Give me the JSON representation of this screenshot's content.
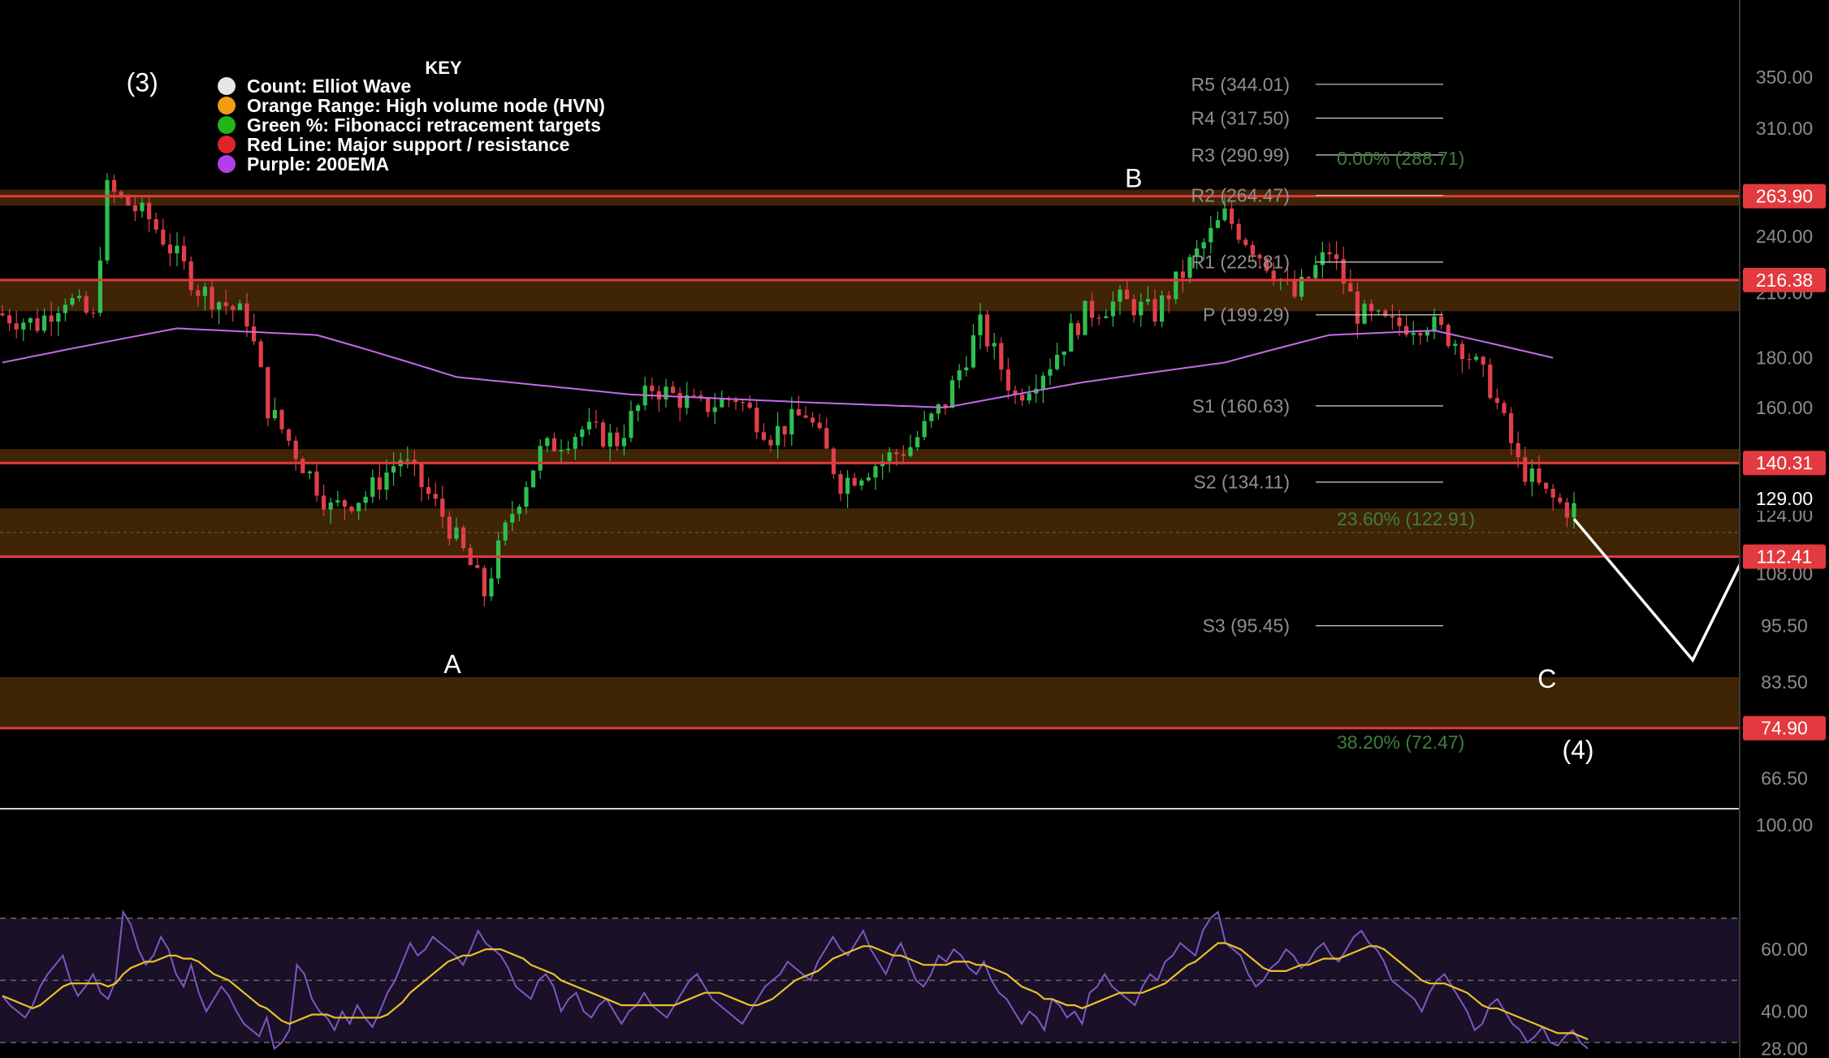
{
  "chart_data": [
    {
      "type": "candlestick",
      "title": "",
      "xlabel": "",
      "ylabel": "",
      "y_scale": "log",
      "ylim": [
        62,
        420
      ],
      "y_ticks": [
        "66.50",
        "83.50",
        "95.50",
        "108.00",
        "124.00",
        "160.00",
        "180.00",
        "210.00",
        "240.00",
        "310.00",
        "350.00"
      ],
      "price_labels": [
        {
          "value": 263.9,
          "text": "263.90",
          "style": "red"
        },
        {
          "value": 216.38,
          "text": "216.38",
          "style": "red"
        },
        {
          "value": 140.31,
          "text": "140.31",
          "style": "red"
        },
        {
          "value": 129.0,
          "text": "129.00",
          "style": "current"
        },
        {
          "value": 112.41,
          "text": "112.41",
          "style": "red"
        },
        {
          "value": 74.9,
          "text": "74.90",
          "style": "red"
        }
      ],
      "legend": {
        "title": "KEY",
        "position": "top-left",
        "items": [
          {
            "label": "Count: Elliot Wave",
            "color": "#e6e6e6"
          },
          {
            "label": "Orange Range: High volume node (HVN)",
            "color": "#f29b13"
          },
          {
            "label": "Green %: Fibonacci retracement targets",
            "color": "#22b51b"
          },
          {
            "label": "Red Line: Major support / resistance",
            "color": "#e0242c"
          },
          {
            "label": "Purple: 200EMA",
            "color": "#b43ee8"
          }
        ]
      },
      "support_resistance": [
        263.9,
        216.38,
        140.31,
        112.41,
        74.9
      ],
      "hvn_zones": [
        {
          "low": 258,
          "high": 268
        },
        {
          "low": 201,
          "high": 216.38
        },
        {
          "low": 140.31,
          "high": 145
        },
        {
          "low": 112.41,
          "high": 126
        },
        {
          "low": 74.9,
          "high": 84.5
        }
      ],
      "pivot_levels": [
        {
          "label": "R5 (344.01)",
          "value": 344.01
        },
        {
          "label": "R4 (317.50)",
          "value": 317.5
        },
        {
          "label": "R3 (290.99)",
          "value": 290.99
        },
        {
          "label": "R2 (264.47)",
          "value": 264.47
        },
        {
          "label": "R1 (225.81)",
          "value": 225.81
        },
        {
          "label": "P (199.29)",
          "value": 199.29
        },
        {
          "label": "S1 (160.63)",
          "value": 160.63
        },
        {
          "label": "S2 (134.11)",
          "value": 134.11
        },
        {
          "label": "S3 (95.45)",
          "value": 95.45
        }
      ],
      "fib_targets": [
        {
          "label": "0.00% (288.71)",
          "value": 288.71
        },
        {
          "label": "23.60% (122.91)",
          "value": 122.91
        },
        {
          "label": "38.20% (72.47)",
          "value": 72.47
        }
      ],
      "wave_labels": [
        {
          "label": "(3)",
          "bar": 2,
          "value": 345
        },
        {
          "label": "A",
          "bar": 70,
          "value": 87
        },
        {
          "label": "B",
          "bar": 178,
          "value": 275
        },
        {
          "label": "C",
          "bar": 243,
          "value": 84
        },
        {
          "label": "(4)",
          "bar": 245,
          "value": 71
        }
      ],
      "projection": [
        {
          "bar": 225,
          "value": 122.9
        },
        {
          "bar": 242,
          "value": 88
        },
        {
          "bar": 265,
          "value": 190
        }
      ],
      "ohlc_anchors": [
        [
          0,
          200
        ],
        [
          6,
          195
        ],
        [
          10,
          208
        ],
        [
          14,
          197
        ],
        [
          16,
          268
        ],
        [
          22,
          250
        ],
        [
          29,
          212
        ],
        [
          36,
          198
        ],
        [
          39,
          160
        ],
        [
          44,
          140
        ],
        [
          48,
          126
        ],
        [
          53,
          130
        ],
        [
          58,
          142
        ],
        [
          64,
          124
        ],
        [
          70,
          103
        ],
        [
          74,
          125
        ],
        [
          78,
          144
        ],
        [
          84,
          152
        ],
        [
          89,
          148
        ],
        [
          94,
          168
        ],
        [
          101,
          160
        ],
        [
          106,
          164
        ],
        [
          111,
          150
        ],
        [
          116,
          158
        ],
        [
          121,
          134
        ],
        [
          126,
          140
        ],
        [
          131,
          146
        ],
        [
          136,
          162
        ],
        [
          141,
          194
        ],
        [
          146,
          164
        ],
        [
          151,
          178
        ],
        [
          156,
          200
        ],
        [
          161,
          206
        ],
        [
          166,
          200
        ],
        [
          171,
          225
        ],
        [
          176,
          252
        ],
        [
          181,
          230
        ],
        [
          186,
          208
        ],
        [
          191,
          232
        ],
        [
          195,
          200
        ],
        [
          200,
          194
        ],
        [
          205,
          196
        ],
        [
          210,
          185
        ],
        [
          214,
          168
        ],
        [
          218,
          140
        ],
        [
          222,
          130
        ],
        [
          225,
          126
        ]
      ],
      "ema200_anchors": [
        [
          0,
          178
        ],
        [
          25,
          193
        ],
        [
          45,
          190
        ],
        [
          65,
          172
        ],
        [
          90,
          165
        ],
        [
          115,
          162
        ],
        [
          135,
          160
        ],
        [
          155,
          170
        ],
        [
          175,
          178
        ],
        [
          190,
          190
        ],
        [
          205,
          192
        ],
        [
          222,
          180
        ]
      ],
      "subplot": {
        "type": "line",
        "ylim": [
          25,
          105
        ],
        "y_ticks": [
          "28.00",
          "40.00",
          "60.00",
          "100.00"
        ],
        "band": [
          30,
          70
        ],
        "midline": 50,
        "series": [
          {
            "color": "#7e57c2",
            "values": [
              45,
              42,
              40,
              38,
              42,
              48,
              52,
              55,
              58,
              50,
              45,
              48,
              52,
              46,
              44,
              50,
              72,
              68,
              60,
              55,
              58,
              64,
              60,
              52,
              48,
              55,
              46,
              40,
              44,
              48,
              45,
              40,
              36,
              34,
              32,
              38,
              28,
              30,
              34,
              55,
              52,
              44,
              40,
              38,
              34,
              40,
              36,
              42,
              38,
              35,
              40,
              46,
              50,
              56,
              62,
              58,
              60,
              64,
              62,
              60,
              58,
              55,
              60,
              66,
              62,
              60,
              58,
              54,
              48,
              46,
              44,
              50,
              52,
              48,
              40,
              44,
              46,
              40,
              38,
              42,
              44,
              40,
              36,
              40,
              42,
              46,
              42,
              40,
              38,
              42,
              46,
              50,
              52,
              48,
              44,
              42,
              40,
              38,
              36,
              40,
              44,
              48,
              50,
              52,
              56,
              54,
              52,
              50,
              56,
              60,
              64,
              60,
              58,
              62,
              66,
              60,
              56,
              52,
              58,
              62,
              56,
              50,
              48,
              52,
              58,
              56,
              60,
              58,
              54,
              52,
              56,
              50,
              46,
              44,
              40,
              36,
              40,
              38,
              34,
              44,
              42,
              38,
              40,
              36,
              46,
              48,
              52,
              48,
              46,
              44,
              42,
              48,
              52,
              50,
              56,
              58,
              62,
              60,
              58,
              66,
              70,
              72,
              62,
              60,
              58,
              52,
              48,
              50,
              54,
              56,
              60,
              58,
              54,
              56,
              60,
              62,
              58,
              56,
              60,
              64,
              66,
              62,
              60,
              56,
              50,
              48,
              46,
              44,
              40,
              46,
              50,
              52,
              48,
              44,
              40,
              34,
              36,
              42,
              44,
              40,
              36,
              34,
              30,
              32,
              35,
              30,
              29,
              32,
              34,
              30,
              28
            ]
          },
          {
            "color": "#e6c229",
            "values": [
              45,
              44,
              43,
              42,
              41,
              42,
              44,
              46,
              48,
              49,
              49,
              49,
              49,
              49,
              48,
              49,
              52,
              54,
              55,
              56,
              56,
              57,
              58,
              58,
              57,
              57,
              56,
              54,
              52,
              51,
              50,
              48,
              46,
              44,
              42,
              41,
              39,
              37,
              36,
              37,
              38,
              39,
              39,
              39,
              38,
              38,
              38,
              38,
              38,
              38,
              38,
              39,
              41,
              43,
              46,
              48,
              50,
              52,
              54,
              56,
              57,
              58,
              58,
              59,
              60,
              60,
              60,
              59,
              58,
              57,
              55,
              54,
              53,
              52,
              50,
              49,
              48,
              47,
              46,
              45,
              44,
              43,
              42,
              42,
              42,
              42,
              42,
              42,
              42,
              42,
              43,
              44,
              45,
              46,
              46,
              46,
              45,
              44,
              43,
              42,
              42,
              43,
              44,
              46,
              48,
              50,
              51,
              52,
              53,
              55,
              57,
              58,
              59,
              60,
              61,
              61,
              60,
              59,
              58,
              58,
              57,
              56,
              55,
              55,
              55,
              55,
              56,
              56,
              56,
              55,
              55,
              54,
              53,
              52,
              50,
              48,
              47,
              46,
              44,
              44,
              43,
              42,
              42,
              41,
              42,
              43,
              44,
              45,
              46,
              46,
              46,
              46,
              47,
              48,
              49,
              51,
              53,
              55,
              56,
              58,
              60,
              62,
              62,
              61,
              60,
              58,
              56,
              54,
              53,
              53,
              53,
              54,
              55,
              55,
              56,
              57,
              57,
              57,
              58,
              59,
              60,
              61,
              61,
              60,
              58,
              56,
              54,
              52,
              50,
              49,
              49,
              49,
              48,
              47,
              46,
              44,
              42,
              41,
              41,
              40,
              39,
              38,
              37,
              36,
              35,
              34,
              33,
              33,
              33,
              32,
              31
            ]
          }
        ]
      }
    }
  ]
}
